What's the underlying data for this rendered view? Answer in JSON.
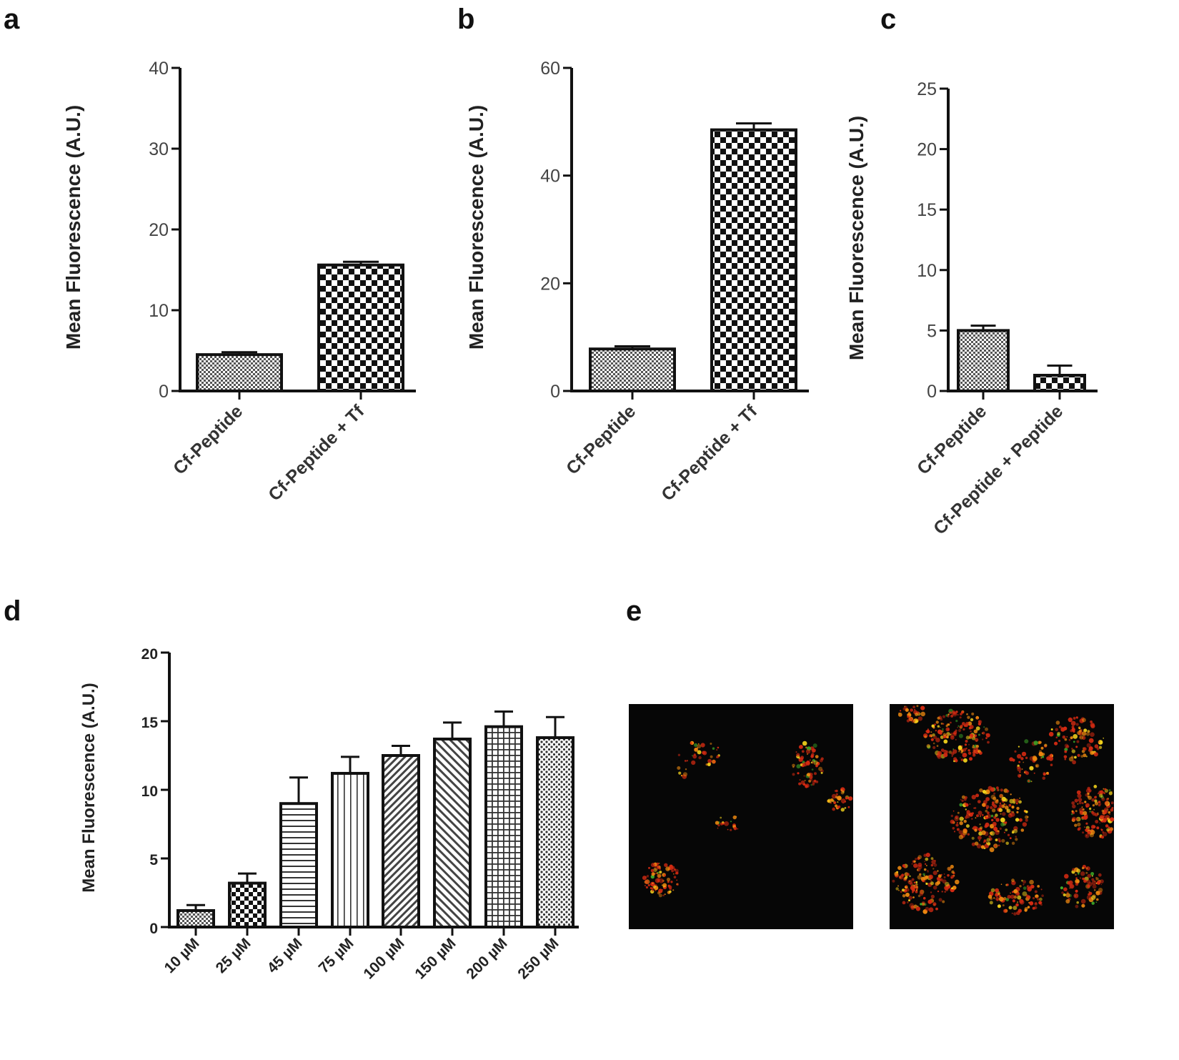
{
  "panel_labels": {
    "a": "a",
    "b": "b",
    "c": "c",
    "d": "d",
    "e": "e"
  },
  "colors": {
    "axis": "#111111",
    "bar_stroke": "#111111",
    "micrograph_bg": "#050505",
    "signal_red": "#d42a12",
    "signal_orange": "#f08a10",
    "signal_yellow": "#f2d21c",
    "signal_green": "#3fae2a"
  },
  "chart_data": [
    {
      "type": "bar",
      "panel": "a",
      "ylabel": "Mean Fluorescence (A.U.)",
      "xlabel": "",
      "ylim": [
        0,
        40
      ],
      "yticks": [
        "0",
        "10",
        "20",
        "30",
        "40"
      ],
      "categories": [
        "Cf-Peptide",
        "Cf-Peptide + Tf"
      ],
      "values": [
        4.5,
        15.6
      ],
      "errors": [
        0.3,
        0.4
      ],
      "patterns": [
        "fine",
        "checker"
      ],
      "grid": false
    },
    {
      "type": "bar",
      "panel": "b",
      "ylabel": "Mean Fluorescence (A.U.)",
      "xlabel": "",
      "ylim": [
        0,
        60
      ],
      "yticks": [
        "0",
        "20",
        "40",
        "60"
      ],
      "categories": [
        "Cf-Peptide",
        "Cf-Peptide + Tf"
      ],
      "values": [
        7.8,
        48.5
      ],
      "errors": [
        0.5,
        1.2
      ],
      "patterns": [
        "fine",
        "checker"
      ],
      "grid": false
    },
    {
      "type": "bar",
      "panel": "c",
      "ylabel": "Mean Fluorescence (A.U.)",
      "xlabel": "",
      "ylim": [
        0,
        25
      ],
      "yticks": [
        "0",
        "5",
        "10",
        "15",
        "20",
        "25"
      ],
      "categories": [
        "Cf-Peptide",
        "Cf-Peptide + Peptide"
      ],
      "values": [
        5.0,
        1.3
      ],
      "errors": [
        0.4,
        0.8
      ],
      "patterns": [
        "fine",
        "checker"
      ],
      "grid": false
    },
    {
      "type": "bar",
      "panel": "d",
      "ylabel": "Mean Fluorescence (A.U.)",
      "xlabel": "",
      "ylim": [
        0,
        20
      ],
      "yticks": [
        "0",
        "5",
        "10",
        "15",
        "20"
      ],
      "categories": [
        "10 µM",
        "25 µM",
        "45 µM",
        "75 µM",
        "100 µM",
        "150 µM",
        "200 µM",
        "250 µM"
      ],
      "values": [
        1.2,
        3.2,
        9.0,
        11.2,
        12.5,
        13.7,
        14.6,
        13.8
      ],
      "errors": [
        0.4,
        0.7,
        1.9,
        1.2,
        0.7,
        1.2,
        1.1,
        1.5
      ],
      "patterns": [
        "fine",
        "checker",
        "hlines",
        "vlines",
        "diag",
        "diag2",
        "grid",
        "dots"
      ],
      "grid": false
    }
  ],
  "micrographs": [
    {
      "name": "micrograph-left",
      "signal": "sparse"
    },
    {
      "name": "micrograph-right",
      "signal": "dense"
    }
  ]
}
